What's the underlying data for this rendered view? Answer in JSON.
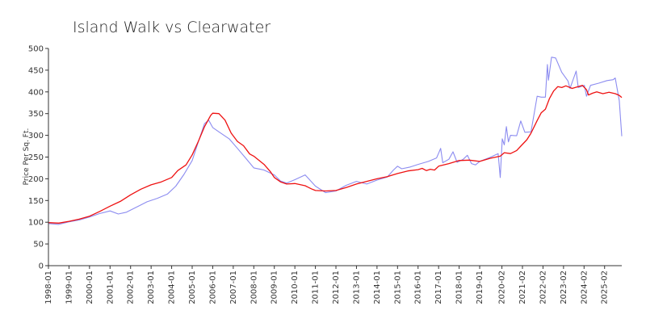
{
  "chart_data": {
    "type": "line",
    "title": "Island Walk vs Clearwater",
    "xlabel": "",
    "ylabel": "Price Per Sq. Ft.",
    "ylim": [
      0,
      500
    ],
    "yticks": [
      0,
      50,
      100,
      150,
      200,
      250,
      300,
      350,
      400,
      450,
      500
    ],
    "xlim": [
      1998.0,
      2025.92
    ],
    "xticks": [
      "1998-01",
      "1999-01",
      "2000-01",
      "2001-01",
      "2002-01",
      "2003-01",
      "2004-01",
      "2005-01",
      "2006-01",
      "2007-01",
      "2008-01",
      "2009-01",
      "2010-01",
      "2011-01",
      "2012-01",
      "2013-01",
      "2014-01",
      "2015-01",
      "2016-01",
      "2017-01",
      "2018-01",
      "2019-01",
      "2020-02",
      "2021-02",
      "2022-02",
      "2023-02",
      "2024-02",
      "2025-02"
    ],
    "series": [
      {
        "name": "Island Walk",
        "color": "#8c8cf0",
        "points": [
          [
            1998.0,
            97
          ],
          [
            1998.5,
            95
          ],
          [
            1999.0,
            101
          ],
          [
            1999.5,
            105
          ],
          [
            2000.0,
            112
          ],
          [
            2000.5,
            120
          ],
          [
            2001.0,
            126
          ],
          [
            2001.4,
            119
          ],
          [
            2001.8,
            123
          ],
          [
            2002.3,
            135
          ],
          [
            2002.8,
            147
          ],
          [
            2003.3,
            155
          ],
          [
            2003.8,
            165
          ],
          [
            2004.2,
            183
          ],
          [
            2004.6,
            210
          ],
          [
            2005.0,
            242
          ],
          [
            2005.3,
            285
          ],
          [
            2005.6,
            327
          ],
          [
            2005.8,
            335
          ],
          [
            2006.0,
            318
          ],
          [
            2006.3,
            308
          ],
          [
            2006.8,
            292
          ],
          [
            2007.2,
            270
          ],
          [
            2007.6,
            248
          ],
          [
            2008.0,
            225
          ],
          [
            2008.5,
            220
          ],
          [
            2009.0,
            209
          ],
          [
            2009.3,
            195
          ],
          [
            2009.6,
            190
          ],
          [
            2010.0,
            198
          ],
          [
            2010.5,
            209
          ],
          [
            2011.0,
            183
          ],
          [
            2011.5,
            168
          ],
          [
            2012.0,
            172
          ],
          [
            2012.5,
            185
          ],
          [
            2013.0,
            194
          ],
          [
            2013.5,
            188
          ],
          [
            2014.0,
            197
          ],
          [
            2014.5,
            204
          ],
          [
            2014.8,
            220
          ],
          [
            2015.0,
            229
          ],
          [
            2015.2,
            223
          ],
          [
            2015.6,
            227
          ],
          [
            2016.0,
            233
          ],
          [
            2016.5,
            240
          ],
          [
            2016.9,
            248
          ],
          [
            2017.0,
            259
          ],
          [
            2017.1,
            270
          ],
          [
            2017.2,
            237
          ],
          [
            2017.5,
            245
          ],
          [
            2017.7,
            262
          ],
          [
            2017.9,
            238
          ],
          [
            2018.2,
            245
          ],
          [
            2018.4,
            254
          ],
          [
            2018.6,
            235
          ],
          [
            2018.8,
            232
          ],
          [
            2019.0,
            240
          ],
          [
            2019.5,
            249
          ],
          [
            2019.9,
            258
          ],
          [
            2020.0,
            203
          ],
          [
            2020.1,
            292
          ],
          [
            2020.2,
            278
          ],
          [
            2020.3,
            320
          ],
          [
            2020.4,
            285
          ],
          [
            2020.5,
            300
          ],
          [
            2020.8,
            299
          ],
          [
            2021.0,
            333
          ],
          [
            2021.2,
            307
          ],
          [
            2021.5,
            308
          ],
          [
            2021.8,
            390
          ],
          [
            2022.0,
            388
          ],
          [
            2022.2,
            388
          ],
          [
            2022.3,
            463
          ],
          [
            2022.35,
            427
          ],
          [
            2022.5,
            480
          ],
          [
            2022.7,
            478
          ],
          [
            2023.0,
            445
          ],
          [
            2023.3,
            425
          ],
          [
            2023.4,
            408
          ],
          [
            2023.7,
            448
          ],
          [
            2023.8,
            410
          ],
          [
            2024.1,
            415
          ],
          [
            2024.2,
            390
          ],
          [
            2024.4,
            415
          ],
          [
            2024.8,
            420
          ],
          [
            2025.2,
            426
          ],
          [
            2025.5,
            428
          ],
          [
            2025.6,
            432
          ],
          [
            2025.8,
            380
          ],
          [
            2025.92,
            298
          ]
        ]
      },
      {
        "name": "Clearwater",
        "color": "#ee1111",
        "points": [
          [
            1998.0,
            99
          ],
          [
            1998.5,
            98
          ],
          [
            1999.0,
            102
          ],
          [
            1999.5,
            107
          ],
          [
            2000.0,
            114
          ],
          [
            2000.5,
            125
          ],
          [
            2001.0,
            137
          ],
          [
            2001.5,
            148
          ],
          [
            2002.0,
            163
          ],
          [
            2002.5,
            176
          ],
          [
            2003.0,
            186
          ],
          [
            2003.5,
            193
          ],
          [
            2004.0,
            203
          ],
          [
            2004.3,
            219
          ],
          [
            2004.7,
            232
          ],
          [
            2005.0,
            255
          ],
          [
            2005.3,
            286
          ],
          [
            2005.6,
            320
          ],
          [
            2005.9,
            346
          ],
          [
            2006.0,
            351
          ],
          [
            2006.3,
            350
          ],
          [
            2006.6,
            335
          ],
          [
            2006.9,
            305
          ],
          [
            2007.2,
            286
          ],
          [
            2007.5,
            276
          ],
          [
            2007.8,
            257
          ],
          [
            2008.0,
            252
          ],
          [
            2008.5,
            233
          ],
          [
            2008.8,
            217
          ],
          [
            2009.0,
            203
          ],
          [
            2009.3,
            193
          ],
          [
            2009.6,
            188
          ],
          [
            2010.0,
            189
          ],
          [
            2010.5,
            184
          ],
          [
            2010.8,
            177
          ],
          [
            2011.0,
            173
          ],
          [
            2011.5,
            172
          ],
          [
            2012.0,
            173
          ],
          [
            2012.5,
            180
          ],
          [
            2013.0,
            188
          ],
          [
            2013.5,
            194
          ],
          [
            2014.0,
            200
          ],
          [
            2014.5,
            205
          ],
          [
            2015.0,
            212
          ],
          [
            2015.5,
            218
          ],
          [
            2016.0,
            221
          ],
          [
            2016.2,
            224
          ],
          [
            2016.4,
            219
          ],
          [
            2016.6,
            222
          ],
          [
            2016.8,
            220
          ],
          [
            2017.0,
            229
          ],
          [
            2017.5,
            235
          ],
          [
            2018.0,
            242
          ],
          [
            2018.5,
            243
          ],
          [
            2019.0,
            240
          ],
          [
            2019.5,
            247
          ],
          [
            2020.0,
            252
          ],
          [
            2020.2,
            260
          ],
          [
            2020.5,
            258
          ],
          [
            2020.8,
            265
          ],
          [
            2021.0,
            275
          ],
          [
            2021.3,
            290
          ],
          [
            2021.5,
            305
          ],
          [
            2021.8,
            334
          ],
          [
            2022.0,
            352
          ],
          [
            2022.2,
            360
          ],
          [
            2022.4,
            385
          ],
          [
            2022.6,
            402
          ],
          [
            2022.8,
            412
          ],
          [
            2023.0,
            410
          ],
          [
            2023.2,
            414
          ],
          [
            2023.5,
            408
          ],
          [
            2023.8,
            412
          ],
          [
            2024.0,
            415
          ],
          [
            2024.2,
            405
          ],
          [
            2024.3,
            393
          ],
          [
            2024.5,
            397
          ],
          [
            2024.7,
            400
          ],
          [
            2025.0,
            396
          ],
          [
            2025.3,
            399
          ],
          [
            2025.6,
            396
          ],
          [
            2025.8,
            392
          ],
          [
            2025.92,
            387
          ]
        ]
      }
    ]
  }
}
